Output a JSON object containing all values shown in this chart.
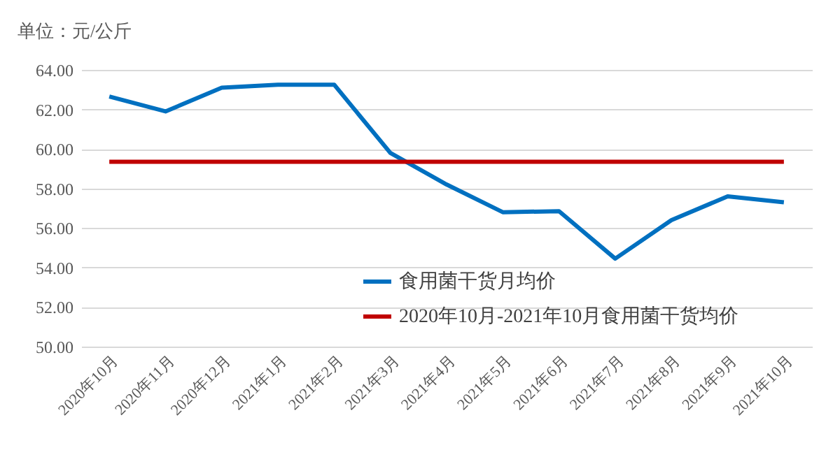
{
  "chart_data": {
    "type": "line",
    "ylabel": "单位：元/公斤",
    "categories": [
      "2020年10月",
      "2020年11月",
      "2020年12月",
      "2021年1月",
      "2021年2月",
      "2021年3月",
      "2021年4月",
      "2021年5月",
      "2021年6月",
      "2021年7月",
      "2021年8月",
      "2021年9月",
      "2021年10月"
    ],
    "series": [
      {
        "name": "食用菌干货月均价",
        "color": "#0070c0",
        "values": [
          62.65,
          61.9,
          63.1,
          63.25,
          63.25,
          59.8,
          58.2,
          56.8,
          56.85,
          54.45,
          56.4,
          57.6,
          57.3
        ]
      },
      {
        "name": "2020年10月-2021年10月食用菌干货均价",
        "color": "#c00000",
        "values": [
          59.35,
          59.35,
          59.35,
          59.35,
          59.35,
          59.35,
          59.35,
          59.35,
          59.35,
          59.35,
          59.35,
          59.35,
          59.35
        ]
      }
    ],
    "ylim": [
      50,
      64
    ],
    "yticks": [
      {
        "value": 50,
        "label": "50.00"
      },
      {
        "value": 52,
        "label": "52.00"
      },
      {
        "value": 54,
        "label": "54.00"
      },
      {
        "value": 56,
        "label": "56.00"
      },
      {
        "value": 58,
        "label": "58.00"
      },
      {
        "value": 60,
        "label": "60.00"
      },
      {
        "value": 62,
        "label": "62.00"
      },
      {
        "value": 64,
        "label": "64.00"
      }
    ],
    "grid": "y",
    "legend": "bottom right",
    "marker": "none",
    "line_style": "solid"
  }
}
